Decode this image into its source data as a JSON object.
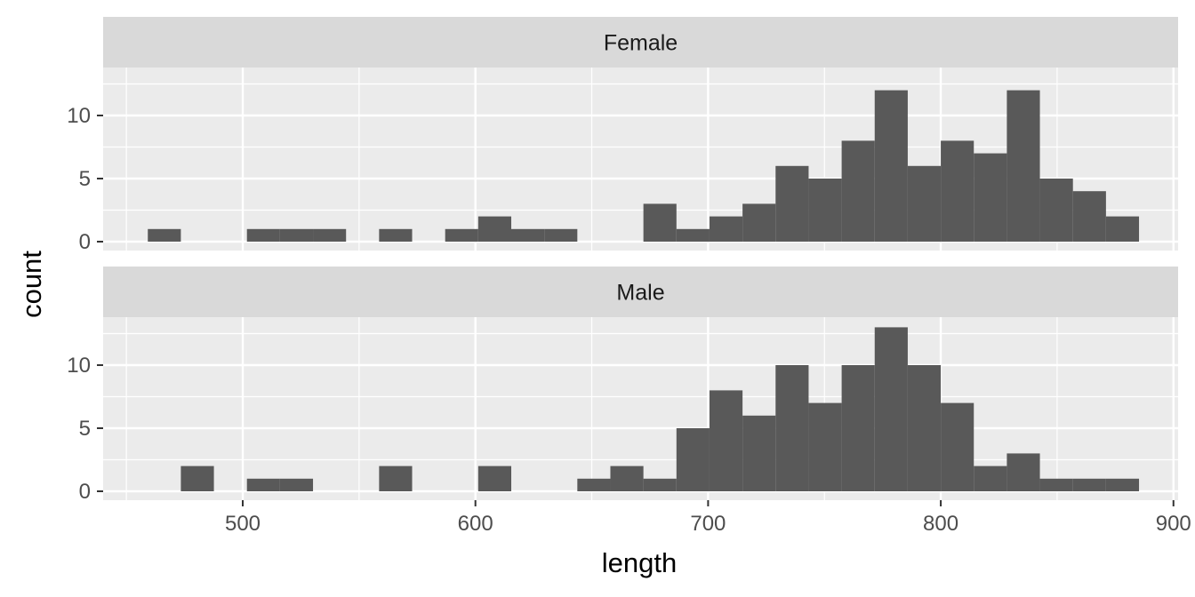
{
  "colors": {
    "background": "#ffffff",
    "panel": "#ebebeb",
    "strip": "#d9d9d9",
    "grid": "#ffffff",
    "bar": "#595959",
    "tick": "#333333"
  },
  "chart_data": {
    "type": "bar",
    "subtype": "faceted-histogram",
    "xlabel": "length",
    "ylabel": "count",
    "x_ticks": [
      500,
      600,
      700,
      800,
      900
    ],
    "y_ticks": [
      0,
      5,
      10
    ],
    "xlim": [
      440,
      902
    ],
    "ylim": [
      -0.6,
      13.7
    ],
    "bin_width": 14.2,
    "bin_starts": [
      459.2,
      473.4,
      487.6,
      501.8,
      516.0,
      530.2,
      544.4,
      558.6,
      572.8,
      587.0,
      601.2,
      615.4,
      629.6,
      643.8,
      658.0,
      672.2,
      686.4,
      700.6,
      714.8,
      729.0,
      743.2,
      757.4,
      771.6,
      785.8,
      800.0,
      814.2,
      828.4,
      842.6,
      856.8,
      871.0
    ],
    "grid": true,
    "legend": "none",
    "facets": [
      {
        "label": "Female",
        "counts": [
          1,
          0,
          0,
          1,
          1,
          1,
          0,
          1,
          0,
          1,
          2,
          1,
          1,
          0,
          0,
          3,
          1,
          2,
          3,
          6,
          5,
          8,
          12,
          6,
          8,
          7,
          12,
          5,
          4,
          2
        ]
      },
      {
        "label": "Male",
        "counts": [
          0,
          2,
          0,
          1,
          1,
          0,
          0,
          2,
          0,
          0,
          2,
          0,
          0,
          1,
          2,
          1,
          5,
          8,
          6,
          10,
          7,
          10,
          13,
          10,
          7,
          2,
          3,
          1,
          1,
          1
        ]
      }
    ]
  }
}
